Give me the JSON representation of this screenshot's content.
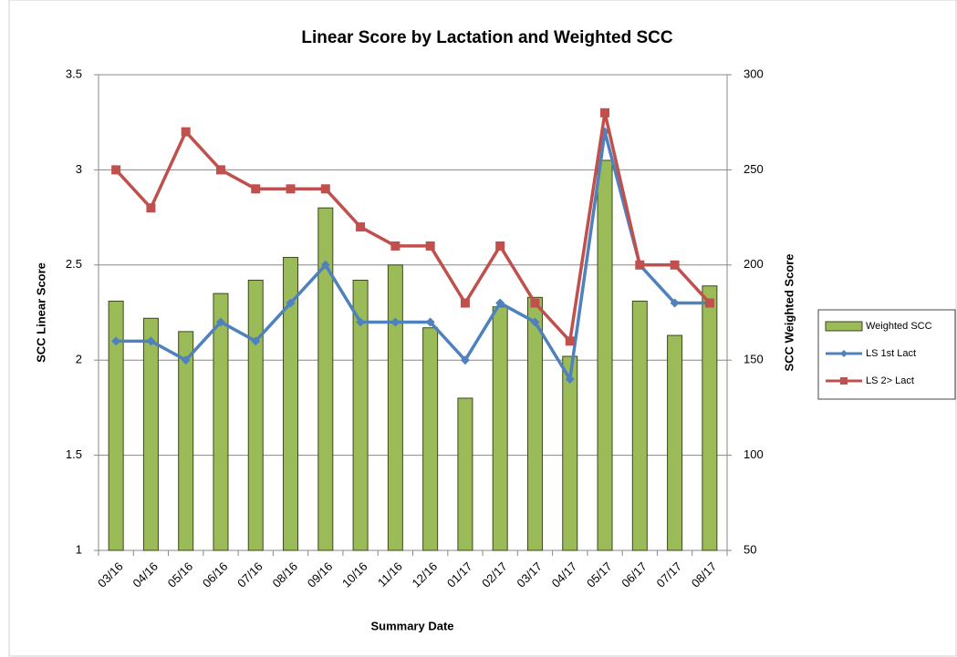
{
  "chart_data": {
    "type": "bar",
    "title": "Linear Score by Lactation and Weighted SCC",
    "x_label": "Summary Date",
    "y_label": "SCC Linear Score",
    "y2_label": "SCC Weighted Score",
    "categories": [
      "03/16",
      "04/16",
      "05/16",
      "06/16",
      "07/16",
      "08/16",
      "09/16",
      "10/16",
      "11/16",
      "12/16",
      "01/17",
      "02/17",
      "03/17",
      "04/17",
      "05/17",
      "06/17",
      "07/17",
      "08/17"
    ],
    "series": [
      {
        "name": "Weighted SCC",
        "type": "bar",
        "axis": "y2",
        "color": "#9bbb59",
        "values": [
          181,
          172,
          165,
          185,
          192,
          204,
          230,
          192,
          200,
          167,
          130,
          178,
          183,
          152,
          255,
          181,
          163,
          189
        ]
      },
      {
        "name": "LS 1st Lact",
        "type": "line",
        "marker": "diamond",
        "color": "#4f81bd",
        "values": [
          2.1,
          2.1,
          2.0,
          2.2,
          2.1,
          2.3,
          2.5,
          2.2,
          2.2,
          2.2,
          2.0,
          2.3,
          2.2,
          1.9,
          3.2,
          2.5,
          2.3,
          2.3
        ]
      },
      {
        "name": "LS 2> Lact",
        "type": "line",
        "marker": "square",
        "color": "#c0504d",
        "values": [
          3.0,
          2.8,
          3.2,
          3.0,
          2.9,
          2.9,
          2.9,
          2.7,
          2.6,
          2.6,
          2.3,
          2.6,
          2.3,
          2.1,
          3.3,
          2.5,
          2.5,
          2.3
        ]
      }
    ],
    "ylim": [
      1,
      3.5
    ],
    "yticks": [
      1,
      1.5,
      2,
      2.5,
      3,
      3.5
    ],
    "y2lim": [
      50,
      300
    ],
    "y2ticks": [
      50,
      100,
      150,
      200,
      250,
      300
    ],
    "grid": true,
    "legend": "right"
  }
}
